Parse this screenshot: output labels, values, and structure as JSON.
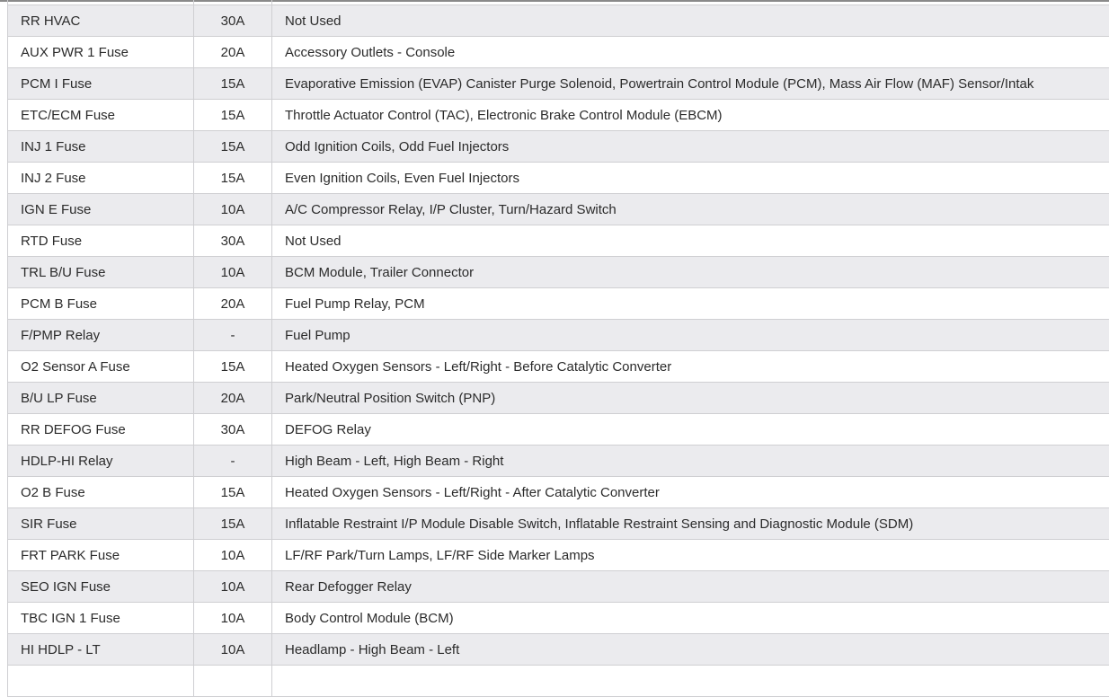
{
  "rows": [
    {
      "name": "RR HVAC",
      "amps": "30A",
      "usage": "Not Used"
    },
    {
      "name": "AUX PWR 1 Fuse",
      "amps": "20A",
      "usage": "Accessory Outlets - Console"
    },
    {
      "name": "PCM I Fuse",
      "amps": "15A",
      "usage": "Evaporative Emission (EVAP) Canister Purge Solenoid, Powertrain Control Module (PCM), Mass Air Flow (MAF) Sensor/Intak"
    },
    {
      "name": "ETC/ECM Fuse",
      "amps": "15A",
      "usage": "Throttle Actuator Control (TAC), Electronic Brake Control Module (EBCM)"
    },
    {
      "name": "INJ 1 Fuse",
      "amps": "15A",
      "usage": "Odd Ignition Coils, Odd Fuel Injectors"
    },
    {
      "name": "INJ 2 Fuse",
      "amps": "15A",
      "usage": "Even Ignition Coils, Even Fuel Injectors"
    },
    {
      "name": "IGN E Fuse",
      "amps": "10A",
      "usage": "A/C Compressor Relay, I/P Cluster, Turn/Hazard Switch"
    },
    {
      "name": "RTD Fuse",
      "amps": "30A",
      "usage": "Not Used"
    },
    {
      "name": "TRL B/U Fuse",
      "amps": "10A",
      "usage": "BCM Module, Trailer Connector"
    },
    {
      "name": "PCM B Fuse",
      "amps": "20A",
      "usage": "Fuel Pump Relay, PCM"
    },
    {
      "name": "F/PMP Relay",
      "amps": "-",
      "usage": "Fuel Pump"
    },
    {
      "name": "O2 Sensor A Fuse",
      "amps": "15A",
      "usage": "Heated Oxygen Sensors - Left/Right - Before Catalytic Converter"
    },
    {
      "name": "B/U LP Fuse",
      "amps": "20A",
      "usage": "Park/Neutral Position Switch (PNP)"
    },
    {
      "name": "RR DEFOG Fuse",
      "amps": "30A",
      "usage": "DEFOG Relay"
    },
    {
      "name": "HDLP-HI Relay",
      "amps": "-",
      "usage": "High Beam - Left, High Beam - Right"
    },
    {
      "name": "O2 B Fuse",
      "amps": "15A",
      "usage": "Heated Oxygen Sensors - Left/Right - After Catalytic Converter"
    },
    {
      "name": "SIR Fuse",
      "amps": "15A",
      "usage": "Inflatable Restraint I/P Module Disable Switch, Inflatable Restraint Sensing and Diagnostic Module (SDM)"
    },
    {
      "name": "FRT PARK Fuse",
      "amps": "10A",
      "usage": "LF/RF Park/Turn Lamps, LF/RF Side Marker Lamps"
    },
    {
      "name": "SEO IGN Fuse",
      "amps": "10A",
      "usage": "Rear Defogger Relay"
    },
    {
      "name": "TBC IGN 1 Fuse",
      "amps": "10A",
      "usage": "Body Control Module (BCM)"
    },
    {
      "name": "HI HDLP - LT",
      "amps": "10A",
      "usage": "Headlamp - High Beam - Left"
    },
    {
      "name": "",
      "amps": "",
      "usage": ""
    }
  ]
}
